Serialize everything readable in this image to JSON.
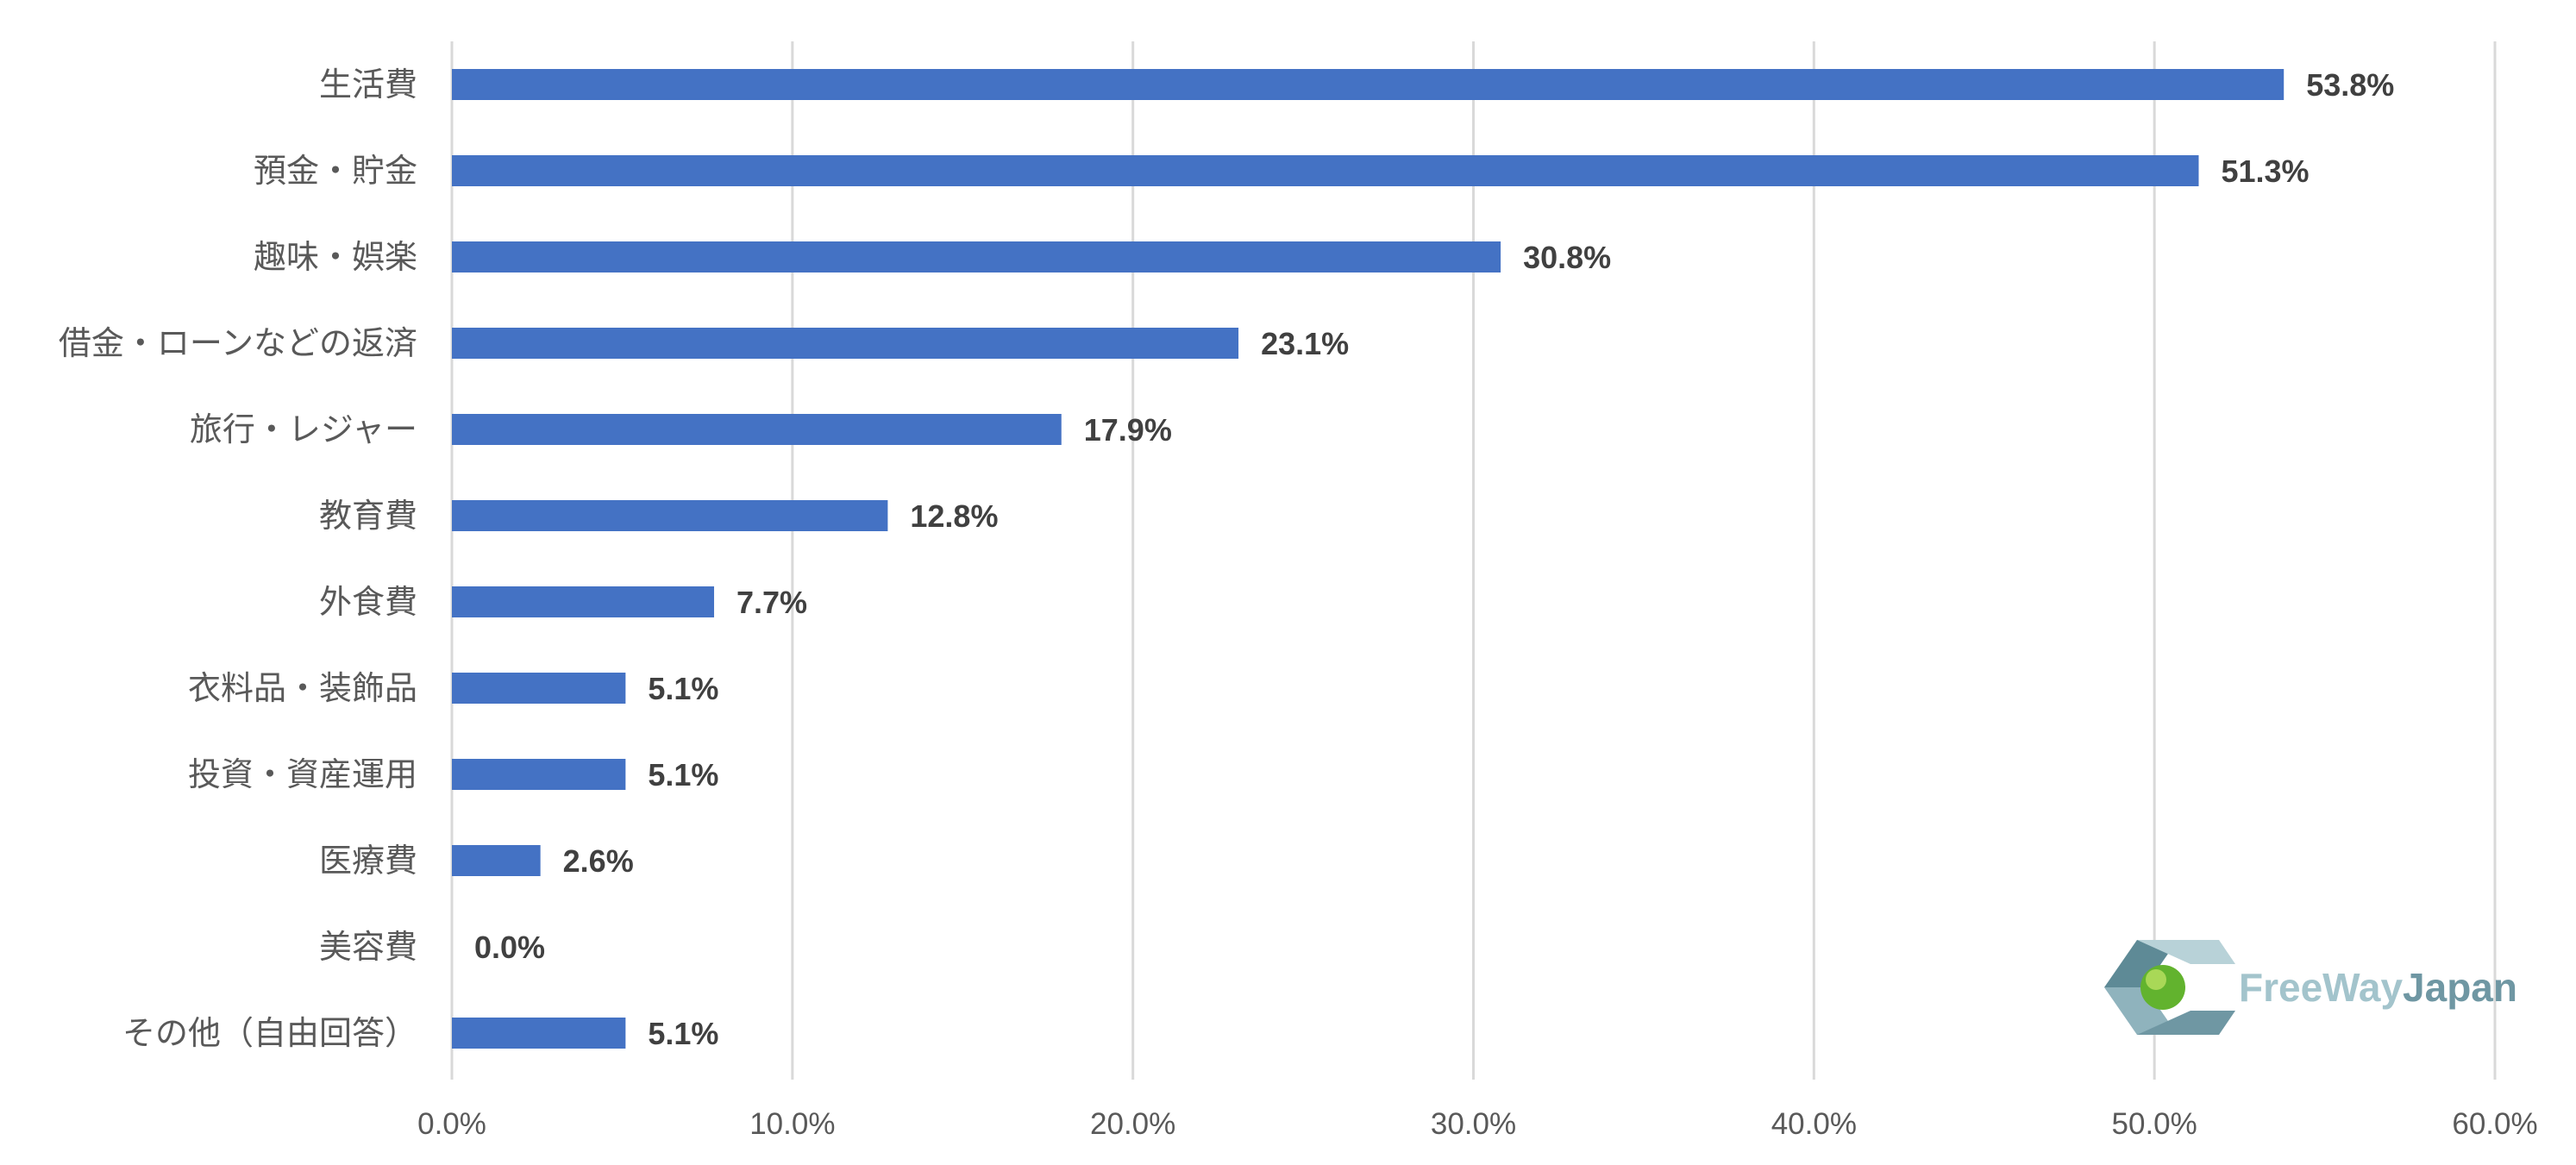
{
  "chart_data": {
    "type": "bar",
    "orientation": "horizontal",
    "categories": [
      "生活費",
      "預金・貯金",
      "趣味・娯楽",
      "借金・ローンなどの返済",
      "旅行・レジャー",
      "教育費",
      "外食費",
      "衣料品・装飾品",
      "投資・資産運用",
      "医療費",
      "美容費",
      "その他（自由回答）"
    ],
    "values": [
      53.8,
      51.3,
      30.8,
      23.1,
      17.9,
      12.8,
      7.7,
      5.1,
      5.1,
      2.6,
      0.0,
      5.1
    ],
    "value_labels": [
      "53.8%",
      "51.3%",
      "30.8%",
      "23.1%",
      "17.9%",
      "12.8%",
      "7.7%",
      "5.1%",
      "5.1%",
      "2.6%",
      "0.0%",
      "5.1%"
    ],
    "xlim": [
      0,
      60
    ],
    "x_ticks": [
      "0.0%",
      "10.0%",
      "20.0%",
      "30.0%",
      "40.0%",
      "50.0%",
      "60.0%"
    ],
    "grid": "vertical",
    "bar_color": "#4472c4"
  },
  "logo": {
    "text_part1": "FreeWay",
    "text_part2": "Japan",
    "color1": "#a3c4cc",
    "color2": "#6f97a3"
  }
}
